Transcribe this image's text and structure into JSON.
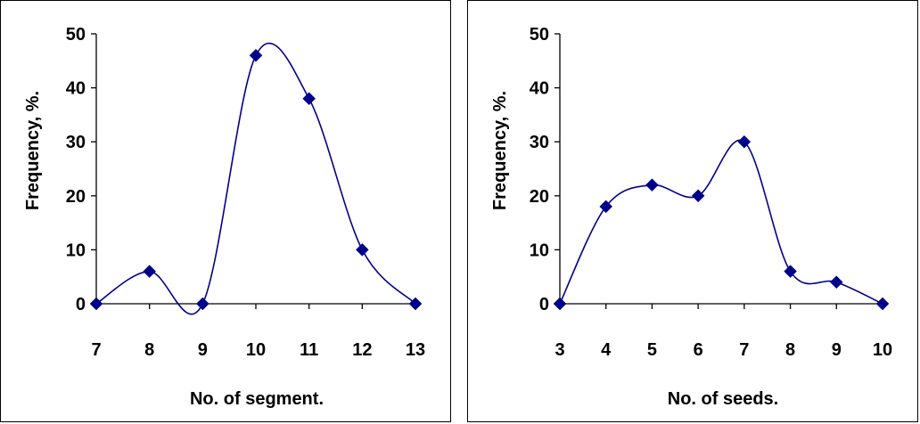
{
  "colors": {
    "series": "#00008B",
    "axis": "#000000",
    "background": "#ffffff"
  },
  "chart_data": [
    {
      "type": "scatter",
      "smoothed_line": true,
      "marker": "diamond",
      "title": "",
      "xlabel": "No. of segment.",
      "ylabel": "Frequency, %.",
      "x": [
        7,
        8,
        9,
        10,
        11,
        12,
        13
      ],
      "y": [
        0,
        6,
        0,
        46,
        38,
        10,
        0
      ],
      "xlim": [
        7,
        13
      ],
      "ylim": [
        0,
        50
      ],
      "xticks": [
        "7",
        "8",
        "9",
        "10",
        "11",
        "12",
        "13"
      ],
      "yticks": [
        "0",
        "10",
        "20",
        "30",
        "40",
        "50"
      ],
      "grid": false,
      "legend": "none"
    },
    {
      "type": "scatter",
      "smoothed_line": true,
      "marker": "diamond",
      "title": "",
      "xlabel": "No. of seeds.",
      "ylabel": "Frequency, %.",
      "x": [
        3,
        4,
        5,
        6,
        7,
        8,
        9,
        10
      ],
      "y": [
        0,
        18,
        22,
        20,
        30,
        6,
        4,
        0
      ],
      "xlim": [
        3,
        10
      ],
      "ylim": [
        0,
        50
      ],
      "xticks": [
        "3",
        "4",
        "5",
        "6",
        "7",
        "8",
        "9",
        "10"
      ],
      "yticks": [
        "0",
        "10",
        "20",
        "30",
        "40",
        "50"
      ],
      "grid": false,
      "legend": "none"
    }
  ]
}
